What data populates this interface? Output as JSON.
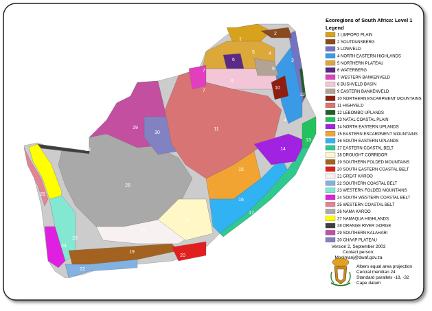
{
  "title": "Ecoregions of South Africa: Level 1",
  "legend_title": "Legend",
  "legend": [
    {
      "label": "1 LIMPOPO PLAIN",
      "color": "#d9a21c"
    },
    {
      "label": "2 SOUTPANSBERG",
      "color": "#8a4a1e"
    },
    {
      "label": "3 LOWVELD",
      "color": "#7373c6"
    },
    {
      "label": "4 NORTH EASTERN HIGHLANDS",
      "color": "#3b9ae6"
    },
    {
      "label": "5 NORTHERN PLATEAU",
      "color": "#dca83a"
    },
    {
      "label": "6 WATERBERG",
      "color": "#5b2a86"
    },
    {
      "label": "7 WESTERN BANKENVELD",
      "color": "#e13fbf"
    },
    {
      "label": "8 BUSHVELD BASIN",
      "color": "#f2c6d6"
    },
    {
      "label": "9 EASTERN BANKENVELD",
      "color": "#b3a394"
    },
    {
      "label": "10 NORTHERN ESCARPMENT MOUNTAINS",
      "color": "#8e1f10"
    },
    {
      "label": "11 HIGHVELD",
      "color": "#d97474"
    },
    {
      "label": "12 LEBOMBO UPLANDS",
      "color": "#1f5f25"
    },
    {
      "label": "13 NATAL COASTAL PLAIN",
      "color": "#22c25e"
    },
    {
      "label": "14 NORTH EASTERN UPLANDS",
      "color": "#a222e2"
    },
    {
      "label": "15 EASTERN ESCARPMENT MOUNTAINS",
      "color": "#f2a432"
    },
    {
      "label": "16 SOUTH EASTERN UPLANDS",
      "color": "#31b2f2"
    },
    {
      "label": "17 EASTERN COASTAL BELT",
      "color": "#2fc88f"
    },
    {
      "label": "18 DROUGHT CORRIDOR",
      "color": "#fff8c6"
    },
    {
      "label": "19 SOUTHERN FOLDED MOUNTAINS",
      "color": "#a3621f"
    },
    {
      "label": "20 SOUTH EASTERN COASTAL BELT",
      "color": "#e21f1f"
    },
    {
      "label": "21 GREAT KAROO",
      "color": "#f7f1f1"
    },
    {
      "label": "22 SOUTHERN COASTAL BELT",
      "color": "#82b2e2"
    },
    {
      "label": "23 WESTERN FOLDED MOUNTAINS",
      "color": "#82e8d2"
    },
    {
      "label": "24 SOUTH WESTERN COASTAL BELT",
      "color": "#e020e0"
    },
    {
      "label": "25 WESTERN COASTAL BELT",
      "color": "#e38494"
    },
    {
      "label": "26 NAMA KAROO",
      "color": "#a9a9a9"
    },
    {
      "label": "27 NAMAQUA HIGHLANDS",
      "color": "#ffff00"
    },
    {
      "label": "28 ORANGE RIVER GORGE",
      "color": "#3f3f3f"
    },
    {
      "label": "29 SOUTHERN KALAHARI",
      "color": "#c34fa1"
    },
    {
      "label": "30 GHAAP PLATEAU",
      "color": "#8282c2"
    }
  ],
  "map_labels": [
    "1",
    "2",
    "5",
    "4",
    "3",
    "6",
    "7",
    "9",
    "8",
    "7",
    "10",
    "12",
    "11",
    "4",
    "29",
    "30",
    "14",
    "13",
    "28",
    "26",
    "15",
    "27",
    "25",
    "16",
    "17",
    "18",
    "21",
    "24",
    "23",
    "19",
    "20",
    "22"
  ],
  "footer": {
    "version": "Version 2, September 2003",
    "contact_label": "Contact person:",
    "contact_email": "Moolmanj@dwaf.gov.za",
    "projection": "Albers equal area projection",
    "meridian": "Central meridian 24",
    "parallels": "Standard parallels -18, -32",
    "datum": "Cape datum"
  }
}
